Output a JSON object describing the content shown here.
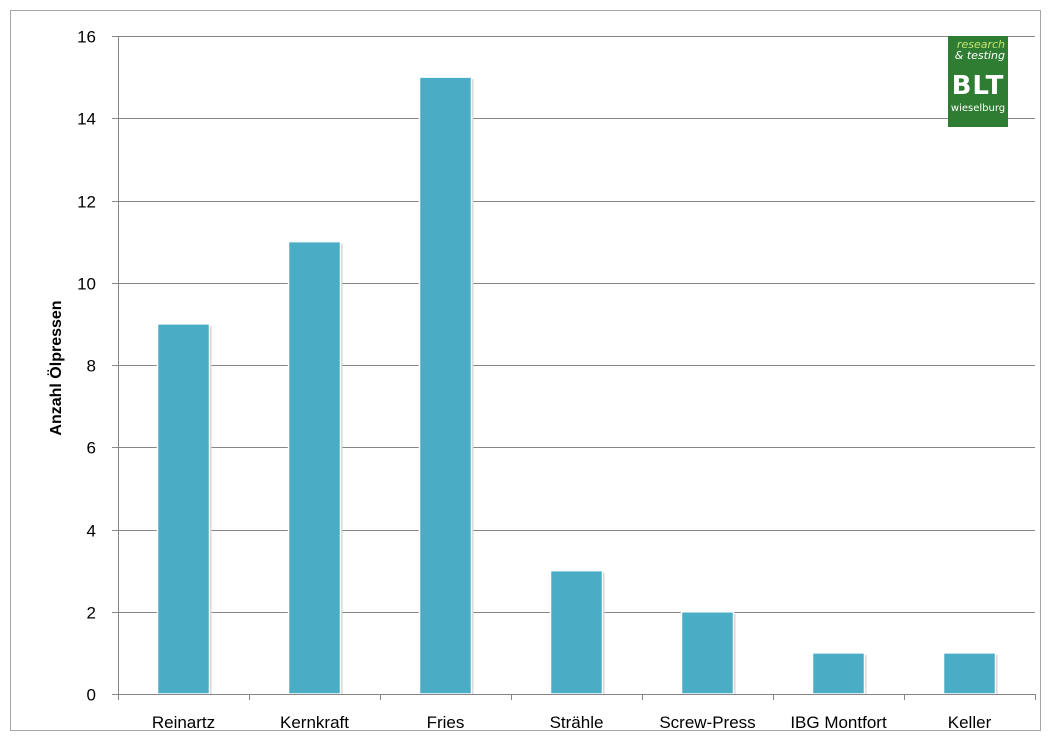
{
  "chart_data": {
    "type": "bar",
    "title": "",
    "xlabel": "",
    "ylabel": "Anzahl Ölpressen",
    "categories": [
      "Reinartz",
      "Kernkraft",
      "Fries",
      "Strähle",
      "Screw-Press",
      "IBG Montfort",
      "Keller"
    ],
    "values": [
      9,
      11,
      15,
      3,
      2,
      1,
      1
    ],
    "ylim": [
      0,
      16
    ],
    "yticks": [
      0,
      2,
      4,
      6,
      8,
      10,
      12,
      14,
      16
    ],
    "grid": true,
    "legend": "none",
    "bar_color": "#4bacc6"
  },
  "logo": {
    "line1": "research",
    "line2": "& testing",
    "brand": "BLT",
    "city": "wieselburg",
    "color": "#2e7d32"
  }
}
